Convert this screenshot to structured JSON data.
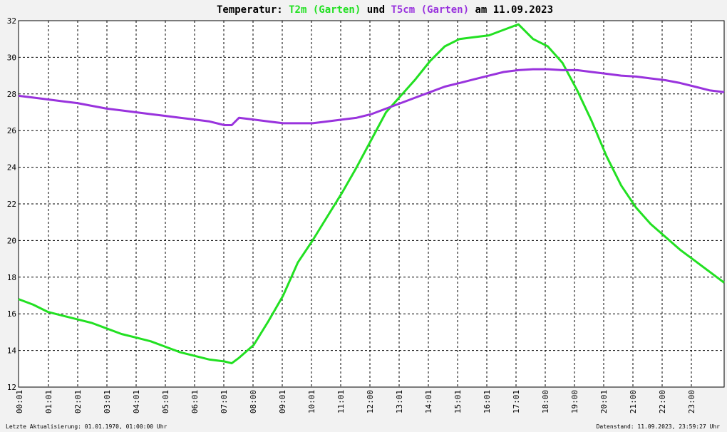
{
  "title": {
    "prefix": "Temperatur: ",
    "series1": "T2m (Garten)",
    "mid": " und ",
    "series2": "T5cm (Garten)",
    "suffix": " am 11.09.2023"
  },
  "footer": {
    "left": "Letzte Aktualisierung: 01.01.1970, 01:00:00 Uhr",
    "right": "Datenstand: 11.09.2023, 23:59:27 Uhr"
  },
  "colors": {
    "background": "#f2f2f2",
    "plot_background": "#ffffff",
    "t2m": "#22e022",
    "t5cm": "#9933dd"
  },
  "chart_data": {
    "type": "line",
    "title": "Temperatur: T2m (Garten) und T5cm (Garten) am 11.09.2023",
    "xlabel": "",
    "ylabel": "",
    "xlim": [
      0,
      24
    ],
    "ylim": [
      12,
      32
    ],
    "grid": true,
    "x_ticks": [
      "00:01",
      "01:01",
      "02:01",
      "03:01",
      "04:01",
      "05:01",
      "06:01",
      "07:01",
      "08:00",
      "09:01",
      "10:01",
      "11:01",
      "12:00",
      "13:01",
      "14:01",
      "15:01",
      "16:01",
      "17:01",
      "18:00",
      "19:00",
      "20:01",
      "21:00",
      "22:00",
      "23:00"
    ],
    "y_ticks": [
      12,
      14,
      16,
      18,
      20,
      22,
      24,
      26,
      28,
      30,
      32
    ],
    "x": [
      0.0,
      0.5,
      1.0,
      1.5,
      2.0,
      2.5,
      3.0,
      3.5,
      4.0,
      4.5,
      5.0,
      5.5,
      6.0,
      6.5,
      7.0,
      7.25,
      7.5,
      8.0,
      8.5,
      9.0,
      9.5,
      10.0,
      10.5,
      11.0,
      11.5,
      12.0,
      12.5,
      13.0,
      13.5,
      14.0,
      14.5,
      15.0,
      15.5,
      16.0,
      16.5,
      17.0,
      17.5,
      18.0,
      18.5,
      19.0,
      19.5,
      20.0,
      20.5,
      21.0,
      21.5,
      22.0,
      22.5,
      23.0,
      23.5,
      24.0
    ],
    "series": [
      {
        "name": "T2m (Garten)",
        "values": [
          16.8,
          16.5,
          16.1,
          15.9,
          15.7,
          15.5,
          15.2,
          14.9,
          14.7,
          14.5,
          14.2,
          13.9,
          13.7,
          13.5,
          13.4,
          13.3,
          13.6,
          14.3,
          15.6,
          17.0,
          18.8,
          20.0,
          21.3,
          22.6,
          24.0,
          25.5,
          27.0,
          27.9,
          28.8,
          29.8,
          30.6,
          31.0,
          31.1,
          31.2,
          31.5,
          31.8,
          31.0,
          30.6,
          29.7,
          28.2,
          26.5,
          24.6,
          23.0,
          21.8,
          20.9,
          20.2,
          19.5,
          18.9,
          18.3,
          17.7
        ]
      },
      {
        "name": "T5cm (Garten)",
        "values": [
          27.9,
          27.8,
          27.7,
          27.6,
          27.5,
          27.35,
          27.2,
          27.1,
          27.0,
          26.9,
          26.8,
          26.7,
          26.6,
          26.5,
          26.3,
          26.3,
          26.7,
          26.6,
          26.5,
          26.4,
          26.4,
          26.4,
          26.5,
          26.6,
          26.7,
          26.9,
          27.2,
          27.5,
          27.8,
          28.1,
          28.4,
          28.6,
          28.8,
          29.0,
          29.2,
          29.3,
          29.35,
          29.35,
          29.3,
          29.3,
          29.2,
          29.1,
          29.0,
          28.95,
          28.85,
          28.75,
          28.6,
          28.4,
          28.2,
          28.1
        ]
      }
    ]
  }
}
